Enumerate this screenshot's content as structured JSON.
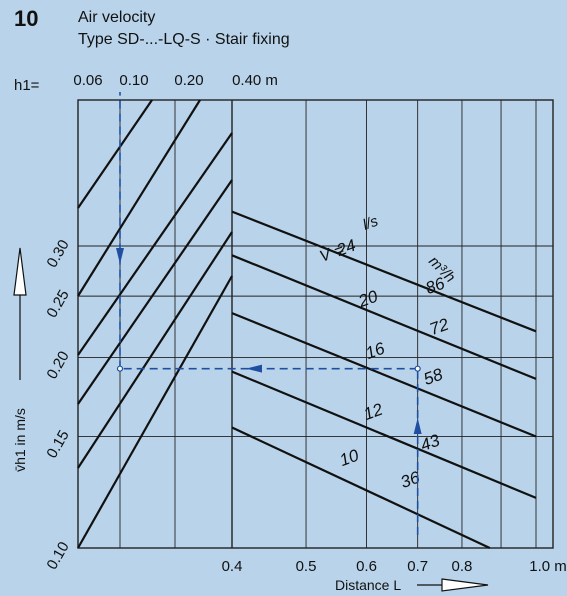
{
  "figure": {
    "number": "10",
    "title": "Air velocity",
    "subtitle": "Type SD-...-LQ-S · Stair fixing"
  },
  "chart_data": {
    "type": "line",
    "title": "Air velocity",
    "subtitle": "Type SD-...-LQ-S · Stair fixing",
    "grid": true,
    "xlabel": "Distance L",
    "x_unit": "m",
    "x_scale": "log",
    "xlim": [
      0.4,
      1.0
    ],
    "x_ticks": [
      "0.4",
      "0.5",
      "0.6",
      "0.7",
      "0.8",
      "1.0 m"
    ],
    "ylabel": "v̄h1 in m/s",
    "y_scale": "log",
    "ylim": [
      0.1,
      0.38
    ],
    "y_ticks": [
      "0.10",
      "0.15",
      "0.20",
      "0.25",
      "0.30"
    ],
    "top_axis": {
      "label": "h1=",
      "ticks": [
        "0.06",
        "0.10",
        "0.20",
        "0.40 m"
      ]
    },
    "flow_header": {
      "v_symbol": "V̇ =",
      "unit_ls": "l/s",
      "unit_m3h": "m³/h"
    },
    "series": [
      {
        "ls": "24",
        "m3h": "86",
        "x": [
          0.4,
          1.0
        ],
        "y": [
          0.34,
          0.22
        ]
      },
      {
        "ls": "20",
        "m3h": "72",
        "x": [
          0.4,
          1.0
        ],
        "y": [
          0.29,
          0.185
        ]
      },
      {
        "ls": "16",
        "m3h": "58",
        "x": [
          0.4,
          1.0
        ],
        "y": [
          0.235,
          0.15
        ]
      },
      {
        "ls": "12",
        "m3h": "43",
        "x": [
          0.4,
          1.0
        ],
        "y": [
          0.19,
          0.12
        ]
      },
      {
        "ls": "10",
        "m3h": "36",
        "x": [
          0.4,
          0.87
        ],
        "y": [
          0.155,
          0.1
        ]
      }
    ],
    "example_path": {
      "color": "#1f4fa0",
      "distance": 0.7,
      "velocity": 0.192,
      "h1": 0.1
    }
  }
}
